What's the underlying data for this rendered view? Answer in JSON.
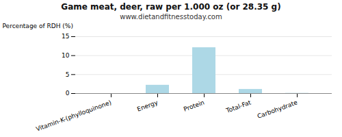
{
  "chart_data": {
    "type": "bar",
    "title": "Game meat, deer, raw per 1.000 oz (or 28.35 g)",
    "subtitle": "www.dietandfitnesstoday.com",
    "categories": [
      "Vitamin-K-(phylloquinone)",
      "Energy",
      "Protein",
      "Total-Fat",
      "Carbohydrate"
    ],
    "values": [
      0,
      2.2,
      12.1,
      1.1,
      0.05
    ],
    "color": "#add8e6",
    "ylabel": "Percentage of RDH (%)",
    "ylim": [
      0,
      15
    ],
    "yticks": [
      0,
      5,
      10,
      15
    ],
    "grid": true
  }
}
